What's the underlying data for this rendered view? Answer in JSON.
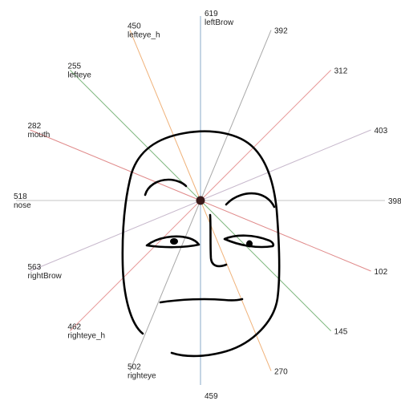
{
  "spokes": [
    {
      "value": "619",
      "name": "leftBrow",
      "color": "#8aa9c8"
    },
    {
      "value": "392",
      "name": "",
      "color": "#a8a8a8"
    },
    {
      "value": "312",
      "name": "",
      "color": "#e89a9a"
    },
    {
      "value": "403",
      "name": "",
      "color": "#c7b8cc"
    },
    {
      "value": "398",
      "name": "",
      "color": "#c4c4c4"
    },
    {
      "value": "102",
      "name": "",
      "color": "#e08a8a"
    },
    {
      "value": "145",
      "name": "",
      "color": "#7fb87f"
    },
    {
      "value": "270",
      "name": "",
      "color": "#f0b27a"
    },
    {
      "value": "459",
      "name": "",
      "color": "#8aa9c8"
    },
    {
      "value": "502",
      "name": "righteye",
      "color": "#a8a8a8"
    },
    {
      "value": "462",
      "name": "righteye_h",
      "color": "#e89a9a"
    },
    {
      "value": "563",
      "name": "rightBrow",
      "color": "#c7b8cc"
    },
    {
      "value": "518",
      "name": "nose",
      "color": "#c4c4c4"
    },
    {
      "value": "282",
      "name": "mouth",
      "color": "#e08a8a"
    },
    {
      "value": "255",
      "name": "lefteye",
      "color": "#7fb87f"
    },
    {
      "value": "450",
      "name": "lefteye_h",
      "color": "#f0b27a"
    }
  ],
  "colors": {
    "hub": "#3a1a1a",
    "stroke": "#000000",
    "text": "#222222"
  }
}
